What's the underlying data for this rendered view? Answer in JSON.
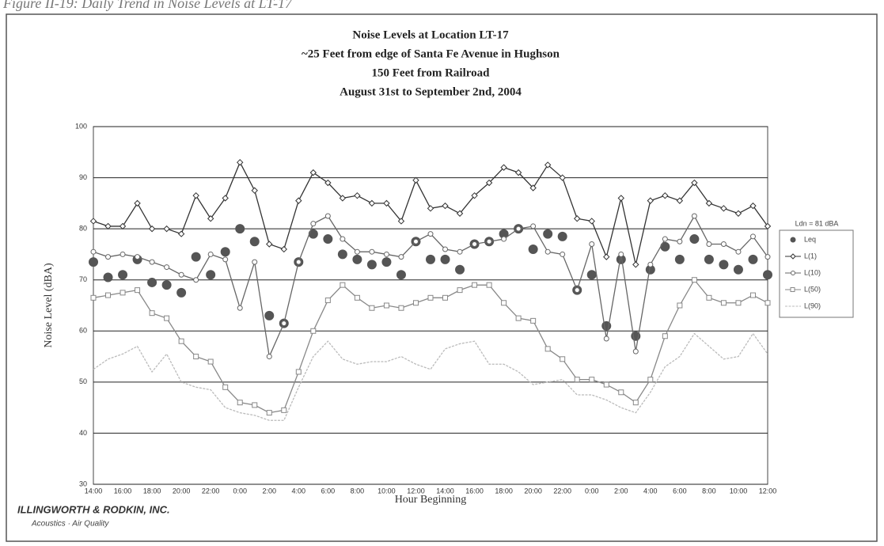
{
  "caption": "Figure II-19: Daily Trend in Noise Levels at LT-17",
  "logo": {
    "name": "ILLINGWORTH & RODKIN, INC.",
    "tagline": "Acoustics · Air Quality"
  },
  "chart_data": {
    "type": "line",
    "title": [
      "Noise Levels at Location LT-17",
      "~25 Feet from edge of Santa Fe Avenue in Hughson",
      "150 Feet from Railroad",
      "August 31st to September 2nd, 2004"
    ],
    "x_label": "Hour Beginning",
    "y_label": "Noise Level (dBA)",
    "annotation": "Ldn = 81 dBA",
    "categories": [
      "14:00",
      null,
      "16:00",
      null,
      "18:00",
      null,
      "20:00",
      null,
      "22:00",
      null,
      "0:00",
      null,
      "2:00",
      null,
      "4:00",
      null,
      "6:00",
      null,
      "8:00",
      null,
      "10:00",
      null,
      "12:00",
      null,
      "14:00",
      null,
      "16:00",
      null,
      "18:00",
      null,
      "20:00",
      null,
      "22:00",
      null,
      "0:00",
      null,
      "2:00",
      null,
      "4:00",
      null,
      "6:00",
      null,
      "8:00",
      null,
      "10:00",
      null,
      "12:00"
    ],
    "ylim": [
      30,
      100
    ],
    "yticks": [
      30,
      40,
      50,
      60,
      70,
      80,
      90,
      100
    ],
    "grid": true,
    "legend": "right",
    "series": [
      {
        "name": "Leq",
        "color": "#555555",
        "marker": "circle",
        "line": false,
        "values": [
          73.5,
          70.5,
          71,
          74,
          69.5,
          69,
          67.5,
          74.5,
          71,
          75.5,
          80,
          77.5,
          63,
          61.5,
          73.5,
          79,
          78,
          75,
          74,
          73,
          73.5,
          71,
          77.5,
          74,
          74,
          72,
          77,
          77.5,
          79,
          80,
          76,
          79,
          78.5,
          68,
          71,
          61,
          74,
          59,
          72,
          76.5,
          74,
          78,
          74,
          73,
          72,
          74,
          71
        ]
      },
      {
        "name": "L(1)",
        "color": "#333333",
        "marker": "diamond",
        "line": true,
        "values": [
          81.5,
          80.5,
          80.5,
          85,
          80,
          80,
          79,
          86.5,
          82,
          86,
          93,
          87.5,
          77,
          76,
          85.5,
          91,
          89,
          86,
          86.5,
          85,
          85,
          81.5,
          89.5,
          84,
          84.5,
          83,
          86.5,
          89,
          92,
          91,
          88,
          92.5,
          90,
          82,
          81.5,
          74.5,
          86,
          73,
          85.5,
          86.5,
          85.5,
          89,
          85,
          84,
          83,
          84.5,
          80.5
        ]
      },
      {
        "name": "L(10)",
        "color": "#666666",
        "marker": "circle",
        "line": true,
        "values": [
          75.5,
          74.5,
          75,
          74.5,
          73.5,
          72.5,
          71,
          70,
          75,
          74,
          64.5,
          73.5,
          55,
          61.5,
          73.5,
          81,
          82.5,
          78,
          75.5,
          75.5,
          75,
          74.5,
          77.5,
          79,
          76,
          75.5,
          77,
          77.5,
          78,
          80,
          80.5,
          75.5,
          75,
          68,
          77,
          58.5,
          75,
          56,
          73,
          78,
          77.5,
          82.5,
          77,
          77,
          75.5,
          78.5,
          74.5
        ]
      },
      {
        "name": "L(50)",
        "color": "#888888",
        "marker": "square",
        "line": true,
        "values": [
          66.5,
          67,
          67.5,
          68,
          63.5,
          62.5,
          58,
          55,
          54,
          49,
          46,
          45.5,
          44,
          44.5,
          52,
          60,
          66,
          69,
          66.5,
          64.5,
          65,
          64.5,
          65.5,
          66.5,
          66.5,
          68,
          69,
          69,
          65.5,
          62.5,
          62,
          56.5,
          54.5,
          50.5,
          50.5,
          49.5,
          48,
          46,
          50.5,
          59,
          65,
          70,
          66.5,
          65.5,
          65.5,
          67,
          65.5
        ]
      },
      {
        "name": "L(90)",
        "color": "#bbbbbb",
        "marker": "none",
        "line": true,
        "values": [
          52.5,
          54.5,
          55.5,
          57,
          52,
          55.5,
          50,
          49,
          48.5,
          45,
          44,
          43.5,
          42.5,
          42.5,
          49,
          55,
          58,
          54.5,
          53.5,
          54,
          54,
          55,
          53.5,
          52.5,
          56.5,
          57.5,
          58,
          53.5,
          53.5,
          52,
          49.5,
          50,
          50.5,
          47.5,
          47.5,
          46.5,
          45,
          44,
          48,
          53,
          55,
          59.5,
          57,
          54.5,
          55,
          59.5,
          55.5
        ]
      }
    ]
  }
}
